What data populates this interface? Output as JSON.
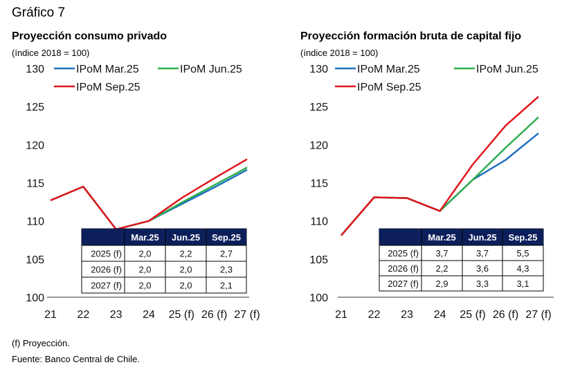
{
  "figure_title": "Gráfico 7",
  "footnotes": {
    "note": "(f) Proyección.",
    "source": "Fuente: Banco Central de Chile."
  },
  "chart_data": [
    {
      "type": "line",
      "title": "Proyección consumo privado",
      "subtitle": "(índice 2018 = 100)",
      "categories": [
        "21",
        "22",
        "23",
        "24",
        "25 (f)",
        "26 (f)",
        "27 (f)"
      ],
      "ylim": [
        100,
        130
      ],
      "yticks": [
        100,
        105,
        110,
        115,
        120,
        125,
        130
      ],
      "grid": false,
      "legend_position": "top",
      "series": [
        {
          "name": "IPoM Mar.25",
          "color": "#1f6fbf",
          "values": [
            112.7,
            114.5,
            108.9,
            110.0,
            112.2,
            114.4,
            116.7
          ]
        },
        {
          "name": "IPoM Jun.25",
          "color": "#2eae4e",
          "values": [
            112.7,
            114.5,
            108.9,
            110.0,
            112.4,
            114.7,
            117.0
          ]
        },
        {
          "name": "IPoM Sep.25",
          "color": "#e0161b",
          "values": [
            112.7,
            114.5,
            108.9,
            110.0,
            113.0,
            115.6,
            118.1
          ]
        }
      ],
      "table": {
        "headers": [
          "Mar.25",
          "Jun.25",
          "Sep.25"
        ],
        "rows": [
          {
            "label": "2025 (f)",
            "values": [
              "2,0",
              "2,2",
              "2,7"
            ]
          },
          {
            "label": "2026 (f)",
            "values": [
              "2,0",
              "2,0",
              "2,3"
            ]
          },
          {
            "label": "2027 (f)",
            "values": [
              "2,0",
              "2,0",
              "2,1"
            ]
          }
        ]
      }
    },
    {
      "type": "line",
      "title": "Proyección formación bruta de capital fijo",
      "subtitle": "(índice 2018 = 100)",
      "categories": [
        "21",
        "22",
        "23",
        "24",
        "25 (f)",
        "26 (f)",
        "27 (f)"
      ],
      "ylim": [
        100,
        130
      ],
      "yticks": [
        100,
        105,
        110,
        115,
        120,
        125,
        130
      ],
      "grid": false,
      "legend_position": "top",
      "series": [
        {
          "name": "IPoM Mar.25",
          "color": "#1f6fbf",
          "values": [
            108.1,
            113.1,
            113.0,
            111.3,
            115.4,
            118.0,
            121.5
          ]
        },
        {
          "name": "IPoM Jun.25",
          "color": "#2eae4e",
          "values": [
            108.1,
            113.1,
            113.0,
            111.3,
            115.4,
            119.6,
            123.6
          ]
        },
        {
          "name": "IPoM Sep.25",
          "color": "#e0161b",
          "values": [
            108.1,
            113.1,
            113.0,
            111.3,
            117.4,
            122.5,
            126.3
          ]
        }
      ],
      "table": {
        "headers": [
          "Mar.25",
          "Jun.25",
          "Sep.25"
        ],
        "rows": [
          {
            "label": "2025 (f)",
            "values": [
              "3,7",
              "3,7",
              "5,5"
            ]
          },
          {
            "label": "2026 (f)",
            "values": [
              "2,2",
              "3,6",
              "4,3"
            ]
          },
          {
            "label": "2027 (f)",
            "values": [
              "2,9",
              "3,3",
              "3,1"
            ]
          }
        ]
      }
    }
  ]
}
